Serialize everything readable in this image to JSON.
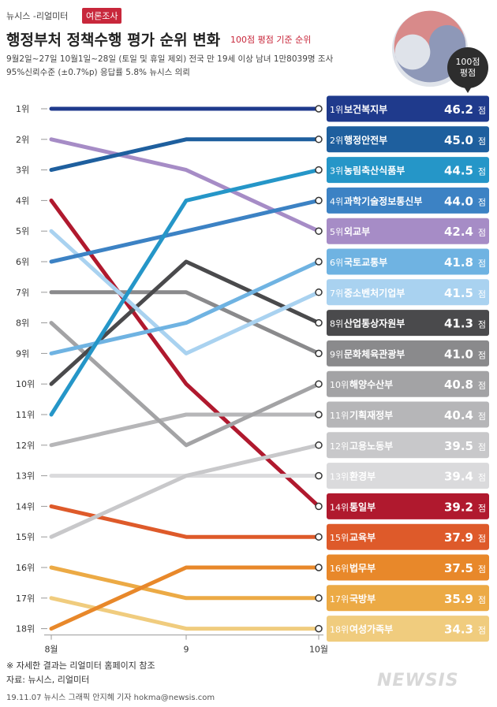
{
  "header": {
    "brand": "뉴시스 -리얼미터",
    "tag": "여론조사",
    "title": "행정부처 정책수행 평가 순위 변화",
    "title_note": "100점 평점 기준 순위",
    "subtitle1": "9월2일~27일 10월1일~28일 (토일 및 휴일 제외) 전국 만 19세 이상 남녀 1만8039명 조사",
    "subtitle2": "95%신뢰수준 (±0.7%p) 응답률 5.8% 뉴시스 의뢰",
    "badge_line1": "100점",
    "badge_line2": "평점"
  },
  "footer": {
    "note": "※ 자세한 결과는 리얼미터 홈페이지 참조",
    "source": "자료: 뉴시스, 리얼미터",
    "credit": "19.11.07   뉴시스 그래픽 안지혜 기자 hokma@newsis.com",
    "logo": "NEWSIS"
  },
  "colors": {
    "accent": "#c8273b",
    "background": "#ffffff"
  },
  "chart_data": {
    "type": "line",
    "title": "행정부처 정책수행 평가 순위 변화",
    "x": [
      "8월",
      "9",
      "10월"
    ],
    "rank_labels": [
      "1위",
      "2위",
      "3위",
      "4위",
      "5위",
      "6위",
      "7위",
      "8위",
      "9위",
      "10위",
      "11위",
      "12위",
      "13위",
      "14위",
      "15위",
      "16위",
      "17위",
      "18위"
    ],
    "ylim": [
      1,
      18
    ],
    "y_reversed": true,
    "series": [
      {
        "name": "보건복지부",
        "ranks": [
          1,
          1,
          1
        ],
        "final_rank_label": "1위",
        "score": 46.2,
        "score_label": "46.2",
        "color": "#1f3a8c"
      },
      {
        "name": "행정안전부",
        "ranks": [
          3,
          2,
          2
        ],
        "final_rank_label": "2위",
        "score": 45.0,
        "score_label": "45.0",
        "color": "#1e5f9e"
      },
      {
        "name": "농림축산식품부",
        "ranks": [
          11,
          4,
          3
        ],
        "final_rank_label": "3위",
        "score": 44.5,
        "score_label": "44.5",
        "color": "#2596c8"
      },
      {
        "name": "과학기술정보통신부",
        "ranks": [
          6,
          5,
          4
        ],
        "final_rank_label": "4위",
        "score": 44.0,
        "score_label": "44.0",
        "color": "#3c82c4"
      },
      {
        "name": "외교부",
        "ranks": [
          2,
          3,
          5
        ],
        "final_rank_label": "5위",
        "score": 42.4,
        "score_label": "42.4",
        "color": "#a68cc6"
      },
      {
        "name": "국토교통부",
        "ranks": [
          9,
          8,
          6
        ],
        "final_rank_label": "6위",
        "score": 41.8,
        "score_label": "41.8",
        "color": "#6fb3e2"
      },
      {
        "name": "중소벤처기업부",
        "ranks": [
          5,
          9,
          7
        ],
        "final_rank_label": "7위",
        "score": 41.5,
        "score_label": "41.5",
        "color": "#a9d2f0"
      },
      {
        "name": "산업통상자원부",
        "ranks": [
          10,
          6,
          8
        ],
        "final_rank_label": "8위",
        "score": 41.3,
        "score_label": "41.3",
        "color": "#4a4a4c"
      },
      {
        "name": "문화체육관광부",
        "ranks": [
          7,
          7,
          9
        ],
        "final_rank_label": "9위",
        "score": 41.0,
        "score_label": "41.0",
        "color": "#8a8a8c"
      },
      {
        "name": "해양수산부",
        "ranks": [
          8,
          12,
          10
        ],
        "final_rank_label": "10위",
        "score": 40.8,
        "score_label": "40.8",
        "color": "#a3a3a5"
      },
      {
        "name": "기획재정부",
        "ranks": [
          12,
          11,
          11
        ],
        "final_rank_label": "11위",
        "score": 40.4,
        "score_label": "40.4",
        "color": "#b6b6b8"
      },
      {
        "name": "고용노동부",
        "ranks": [
          15,
          13,
          12
        ],
        "final_rank_label": "12위",
        "score": 39.5,
        "score_label": "39.5",
        "color": "#c8c8ca"
      },
      {
        "name": "환경부",
        "ranks": [
          13,
          13,
          13
        ],
        "final_rank_label": "13위",
        "score": 39.4,
        "score_label": "39.4",
        "color": "#dadadc"
      },
      {
        "name": "통일부",
        "ranks": [
          4,
          10,
          14
        ],
        "final_rank_label": "14위",
        "score": 39.2,
        "score_label": "39.2",
        "color": "#b0192e"
      },
      {
        "name": "교육부",
        "ranks": [
          14,
          15,
          15
        ],
        "final_rank_label": "15위",
        "score": 37.9,
        "score_label": "37.9",
        "color": "#de5a2a"
      },
      {
        "name": "법무부",
        "ranks": [
          18,
          16,
          16
        ],
        "final_rank_label": "16위",
        "score": 37.5,
        "score_label": "37.5",
        "color": "#e8882a"
      },
      {
        "name": "국방부",
        "ranks": [
          16,
          17,
          17
        ],
        "final_rank_label": "17위",
        "score": 35.9,
        "score_label": "35.9",
        "color": "#ecaa45"
      },
      {
        "name": "여성가족부",
        "ranks": [
          17,
          18,
          18
        ],
        "final_rank_label": "18위",
        "score": 34.3,
        "score_label": "34.3",
        "color": "#f0cc7e"
      }
    ],
    "score_unit": "점",
    "legend": "right"
  }
}
